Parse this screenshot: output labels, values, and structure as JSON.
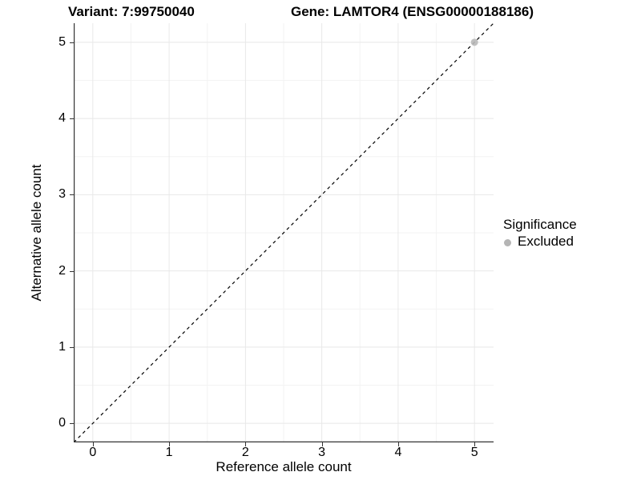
{
  "chart_data": {
    "type": "scatter",
    "title_left": "Variant: 7:99750040",
    "title_right": "Gene: LAMTOR4 (ENSG00000188186)",
    "xlabel": "Reference allele count",
    "ylabel": "Alternative allele count",
    "xlim": [
      -0.25,
      5.25
    ],
    "ylim": [
      -0.25,
      5.25
    ],
    "x_ticks": [
      0,
      1,
      2,
      3,
      4,
      5
    ],
    "y_ticks": [
      0,
      1,
      2,
      3,
      4,
      5
    ],
    "minor_ticks": [
      0.5,
      1.5,
      2.5,
      3.5,
      4.5
    ],
    "grid": true,
    "abline": {
      "slope": 1,
      "intercept": 0,
      "style": "dashed",
      "color": "#000000"
    },
    "series": [
      {
        "name": "Excluded",
        "color": "#b9b9b9",
        "points": [
          {
            "x": 5,
            "y": 5
          }
        ]
      }
    ],
    "legend": {
      "title": "Significance",
      "position": "right",
      "items": [
        {
          "label": "Excluded",
          "color": "#b5b5b5"
        }
      ]
    },
    "colors": {
      "panel_background": "#ffffff",
      "grid_major": "#e8e8e8",
      "grid_minor": "#f3f3f3",
      "axis_line": "#333333",
      "tick_mark": "#333333",
      "point": "#b9b9b9"
    }
  }
}
